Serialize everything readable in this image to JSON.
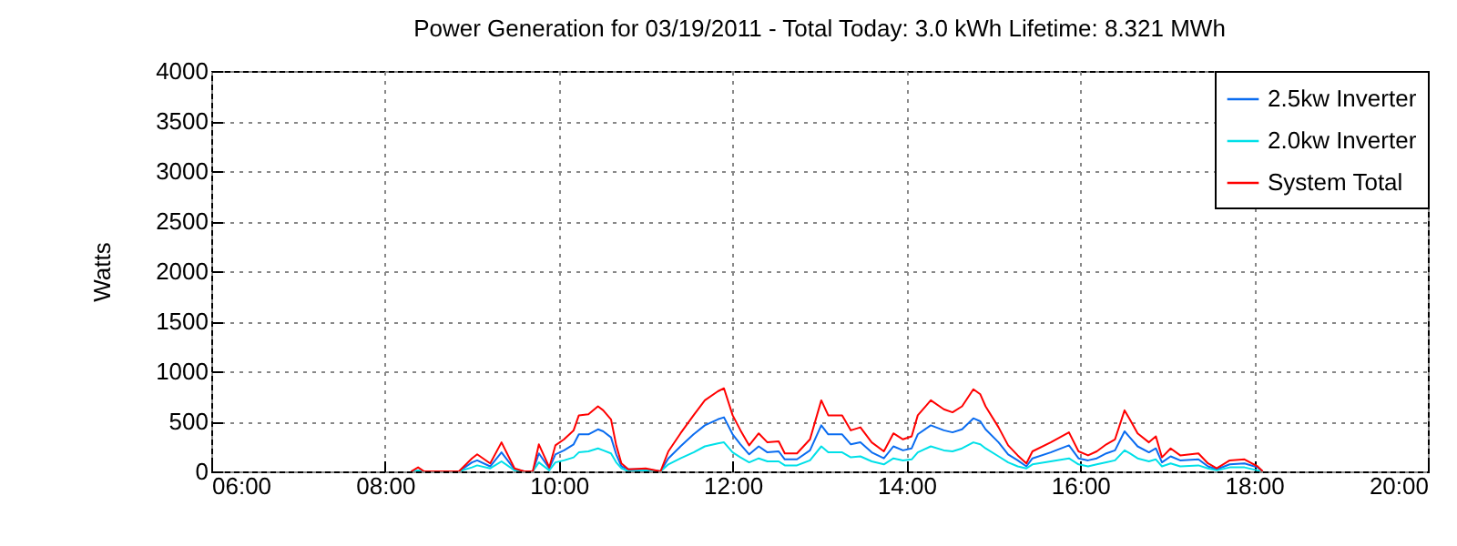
{
  "chart_data": {
    "type": "line",
    "title": "Power Generation for 03/19/2011 - Total Today: 3.0 kWh   Lifetime: 8.321 MWh",
    "ylabel": "Watts",
    "x": [
      8.3,
      8.38,
      8.45,
      8.85,
      9.0,
      9.06,
      9.21,
      9.34,
      9.49,
      9.6,
      9.7,
      9.77,
      9.89,
      9.96,
      10.06,
      10.17,
      10.23,
      10.34,
      10.45,
      10.51,
      10.6,
      10.66,
      10.72,
      10.8,
      11.0,
      11.17,
      11.26,
      11.4,
      11.55,
      11.68,
      11.83,
      11.9,
      12.0,
      12.09,
      12.19,
      12.3,
      12.4,
      12.53,
      12.6,
      12.74,
      12.89,
      13.02,
      13.1,
      13.26,
      13.36,
      13.47,
      13.6,
      13.74,
      13.85,
      13.96,
      14.06,
      14.13,
      14.28,
      14.43,
      14.53,
      14.64,
      14.77,
      14.85,
      14.91,
      15.06,
      15.17,
      15.28,
      15.38,
      15.45,
      15.66,
      15.87,
      15.98,
      16.09,
      16.19,
      16.3,
      16.4,
      16.51,
      16.57,
      16.66,
      16.79,
      16.87,
      16.94,
      17.04,
      17.15,
      17.36,
      17.47,
      17.57,
      17.72,
      17.89,
      18.04,
      18.1
    ],
    "series": [
      {
        "name": "2.5kw Inverter",
        "color": "#0a6cf0",
        "values": [
          null,
          null,
          0,
          0,
          90,
          110,
          50,
          190,
          20,
          0,
          0,
          180,
          30,
          170,
          210,
          270,
          370,
          370,
          420,
          400,
          340,
          170,
          50,
          20,
          20,
          0,
          130,
          250,
          370,
          460,
          520,
          540,
          370,
          270,
          170,
          250,
          190,
          200,
          120,
          120,
          210,
          460,
          370,
          370,
          270,
          290,
          190,
          130,
          250,
          210,
          230,
          370,
          460,
          410,
          390,
          420,
          530,
          500,
          420,
          290,
          170,
          110,
          50,
          130,
          190,
          260,
          130,
          110,
          130,
          180,
          210,
          400,
          340,
          250,
          190,
          230,
          90,
          150,
          110,
          120,
          50,
          20,
          70,
          80,
          40,
          0
        ]
      },
      {
        "name": "2.0kw Inverter",
        "color": "#00e0e8",
        "values": [
          0,
          10,
          0,
          0,
          40,
          60,
          30,
          100,
          10,
          0,
          0,
          90,
          10,
          90,
          110,
          140,
          190,
          200,
          230,
          210,
          180,
          90,
          30,
          0,
          10,
          0,
          70,
          130,
          190,
          250,
          280,
          290,
          190,
          140,
          90,
          130,
          100,
          100,
          60,
          60,
          110,
          250,
          190,
          190,
          140,
          150,
          100,
          70,
          130,
          110,
          120,
          190,
          250,
          210,
          200,
          230,
          290,
          270,
          230,
          150,
          90,
          50,
          30,
          70,
          100,
          130,
          70,
          50,
          70,
          90,
          110,
          210,
          180,
          130,
          100,
          120,
          50,
          80,
          50,
          60,
          30,
          10,
          40,
          40,
          10,
          0
        ]
      },
      {
        "name": "System Total",
        "color": "#ff0000",
        "values": [
          0,
          40,
          0,
          0,
          130,
          170,
          80,
          290,
          30,
          0,
          0,
          270,
          40,
          260,
          320,
          410,
          560,
          570,
          650,
          610,
          520,
          260,
          80,
          20,
          30,
          0,
          200,
          380,
          560,
          710,
          800,
          830,
          560,
          410,
          260,
          380,
          290,
          300,
          180,
          180,
          320,
          710,
          560,
          560,
          410,
          440,
          290,
          200,
          380,
          320,
          350,
          560,
          710,
          620,
          590,
          650,
          820,
          770,
          650,
          440,
          260,
          160,
          80,
          200,
          290,
          390,
          200,
          160,
          200,
          270,
          320,
          610,
          520,
          380,
          290,
          350,
          140,
          230,
          160,
          180,
          80,
          30,
          110,
          120,
          50,
          0
        ]
      }
    ],
    "xlim": [
      6,
      20
    ],
    "xticks": [
      {
        "value": 6,
        "label": "06:00"
      },
      {
        "value": 8,
        "label": "08:00"
      },
      {
        "value": 10,
        "label": "10:00"
      },
      {
        "value": 12,
        "label": "12:00"
      },
      {
        "value": 14,
        "label": "14:00"
      },
      {
        "value": 16,
        "label": "16:00"
      },
      {
        "value": 18,
        "label": "18:00"
      },
      {
        "value": 20,
        "label": "20:00"
      }
    ],
    "ylim": [
      0,
      4000
    ],
    "yticks": [
      0,
      500,
      1000,
      1500,
      2000,
      2500,
      3000,
      3500,
      4000
    ],
    "grid": true,
    "legend": "top right",
    "marker": "none",
    "line_style": "solid"
  }
}
